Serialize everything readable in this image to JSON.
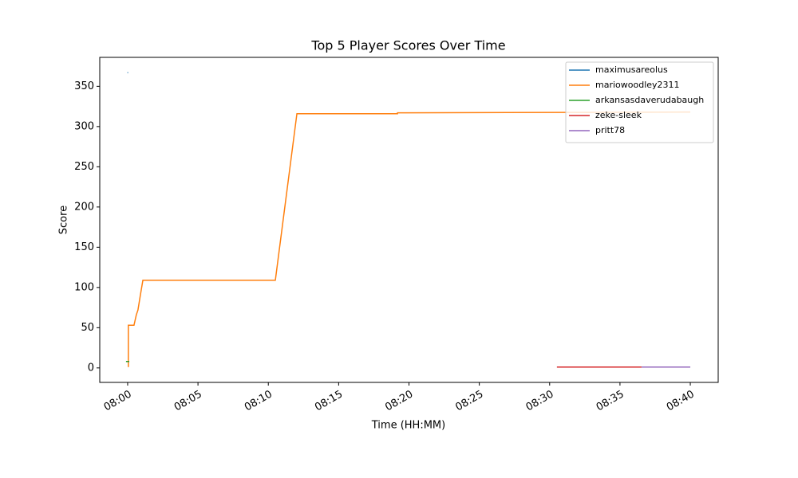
{
  "chart_data": {
    "type": "line",
    "title": "Top 5 Player Scores Over Time",
    "x_label": "Time (HH:MM)",
    "y_label": "Score",
    "xlim": [
      "07:58:01",
      "08:41:59"
    ],
    "xticks": [
      "08:00",
      "08:05",
      "08:10",
      "08:15",
      "08:20",
      "08:25",
      "08:30",
      "08:35",
      "08:40"
    ],
    "ylim": [
      -18,
      386
    ],
    "yticks": [
      0,
      50,
      100,
      150,
      200,
      250,
      300,
      350
    ],
    "legend": "upper right",
    "series": [
      {
        "name": "maximusareolus",
        "color": "#1f77b4",
        "x": [
          "07:59:59",
          "08:00:02"
        ],
        "values": [
          367,
          367
        ]
      },
      {
        "name": "mariowoodley2311",
        "color": "#ff7f0e",
        "x": [
          "08:00:03",
          "08:00:03",
          "08:00:27",
          "08:00:37",
          "08:00:44",
          "08:00:54",
          "08:01:05",
          "08:10:30",
          "08:12:02",
          "08:19:11",
          "08:19:11",
          "08:40:00"
        ],
        "values": [
          1,
          53,
          53,
          66,
          72,
          90,
          109,
          109,
          316,
          316,
          317,
          318
        ]
      },
      {
        "name": "arkansasdaverudabaugh",
        "color": "#2ca02c",
        "x": [
          "07:59:53",
          "08:00:07"
        ],
        "values": [
          8,
          8
        ]
      },
      {
        "name": "zeke-sleek",
        "color": "#d62728",
        "x": [
          "08:30:31",
          "08:36:32"
        ],
        "values": [
          1,
          1
        ]
      },
      {
        "name": "pritt78",
        "color": "#9467bd",
        "x": [
          "08:36:32",
          "08:40:00"
        ],
        "values": [
          1,
          1
        ]
      }
    ]
  }
}
